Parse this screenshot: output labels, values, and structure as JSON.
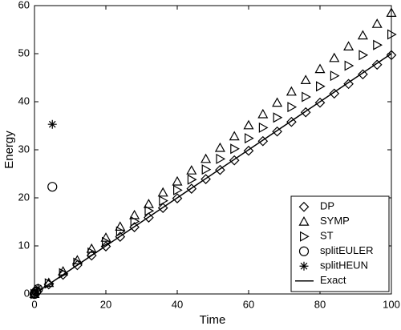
{
  "chart_data": {
    "type": "scatter",
    "xlabel": "Time",
    "ylabel": "Energy",
    "xlim": [
      0,
      100
    ],
    "ylim": [
      0,
      60
    ],
    "xticks": [
      0,
      20,
      40,
      60,
      80,
      100
    ],
    "yticks": [
      0,
      10,
      20,
      30,
      40,
      50,
      60
    ],
    "legend": "lower right",
    "series": [
      {
        "name": "DP",
        "marker": "diamond",
        "color": "#000000",
        "x": [
          0,
          4,
          8,
          12,
          16,
          20,
          24,
          28,
          32,
          36,
          40,
          44,
          48,
          52,
          56,
          60,
          64,
          68,
          72,
          76,
          80,
          84,
          88,
          92,
          96,
          100
        ],
        "values": [
          0,
          2.0,
          4.0,
          6.0,
          8.0,
          9.9,
          11.9,
          13.9,
          15.9,
          17.9,
          19.9,
          21.9,
          23.9,
          25.8,
          27.8,
          29.8,
          31.8,
          33.8,
          35.8,
          37.8,
          39.8,
          41.7,
          43.7,
          45.7,
          47.7,
          49.7
        ]
      },
      {
        "name": "SYMP",
        "marker": "triangle-up",
        "color": "#000000",
        "x": [
          0,
          4,
          8,
          12,
          16,
          20,
          24,
          28,
          32,
          36,
          40,
          44,
          48,
          52,
          56,
          60,
          64,
          68,
          72,
          76,
          80,
          84,
          88,
          92,
          96,
          100
        ],
        "values": [
          0,
          2.3,
          4.7,
          7.0,
          9.4,
          11.7,
          14.0,
          16.4,
          18.7,
          21.1,
          23.4,
          25.7,
          28.1,
          30.4,
          32.8,
          35.1,
          37.4,
          39.8,
          42.1,
          44.5,
          46.8,
          49.1,
          51.5,
          53.8,
          56.2,
          58.5
        ]
      },
      {
        "name": "ST",
        "marker": "triangle-right",
        "color": "#000000",
        "x": [
          0,
          4,
          8,
          12,
          16,
          20,
          24,
          28,
          32,
          36,
          40,
          44,
          48,
          52,
          56,
          60,
          64,
          68,
          72,
          76,
          80,
          84,
          88,
          92,
          96,
          100
        ],
        "values": [
          0,
          2.2,
          4.3,
          6.5,
          8.6,
          10.8,
          13.0,
          15.1,
          17.3,
          19.4,
          21.6,
          23.8,
          25.9,
          28.1,
          30.2,
          32.4,
          34.6,
          36.7,
          38.9,
          41.0,
          43.2,
          45.4,
          47.5,
          49.7,
          51.8,
          54.0
        ]
      },
      {
        "name": "splitEULER",
        "marker": "circle",
        "color": "#000000",
        "x": [
          0,
          0.5,
          1,
          5
        ],
        "values": [
          0,
          0.5,
          1.0,
          22.3
        ]
      },
      {
        "name": "splitHEUN",
        "marker": "star",
        "color": "#000000",
        "x": [
          0,
          0.5,
          1,
          5
        ],
        "values": [
          0,
          0.6,
          1.2,
          35.3
        ]
      },
      {
        "name": "Exact",
        "marker": "line",
        "color": "#000000",
        "x": [
          0,
          100
        ],
        "values": [
          0,
          50
        ]
      }
    ]
  }
}
